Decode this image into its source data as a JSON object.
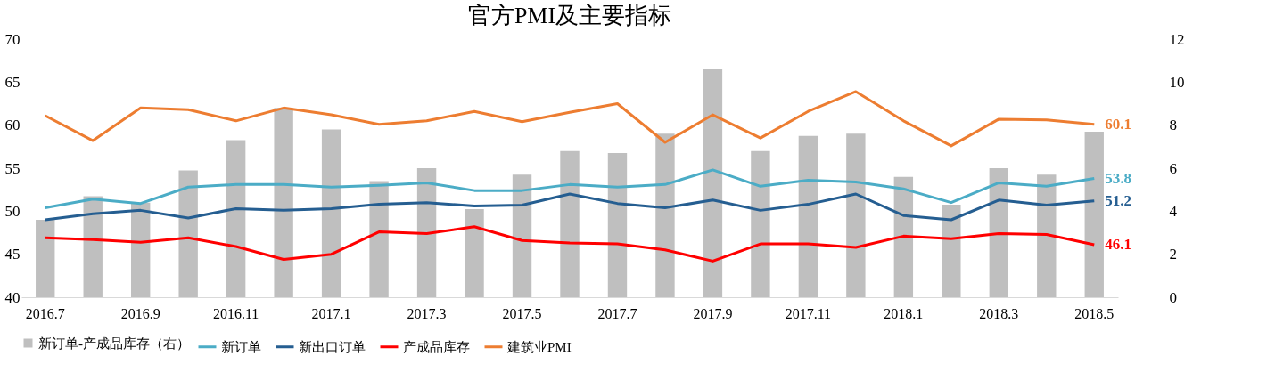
{
  "chart_data": {
    "type": "line",
    "title": "官方PMI及主要指标",
    "categories": [
      "2016.7",
      null,
      "2016.9",
      null,
      "2016.11",
      null,
      "2017.1",
      null,
      "2017.3",
      null,
      "2017.5",
      null,
      "2017.7",
      null,
      "2017.9",
      null,
      "2017.11",
      null,
      "2018.1",
      null,
      "2018.3",
      null,
      "2018.5"
    ],
    "series": [
      {
        "name": "新订单-产成品库存（右）",
        "type": "bar",
        "axis": "y2",
        "color": "#bfbfbf",
        "values": [
          3.6,
          4.7,
          4.4,
          5.9,
          7.3,
          8.8,
          7.8,
          5.4,
          6.0,
          4.1,
          5.7,
          6.8,
          6.7,
          7.6,
          10.6,
          6.8,
          7.5,
          7.6,
          5.6,
          4.3,
          6.0,
          5.7,
          7.7
        ]
      },
      {
        "name": "新订单",
        "color": "#4bacc6",
        "values": [
          50.4,
          51.4,
          50.9,
          52.8,
          53.1,
          53.1,
          52.8,
          53.0,
          53.3,
          52.4,
          52.4,
          53.1,
          52.8,
          53.1,
          54.8,
          52.9,
          53.6,
          53.4,
          52.6,
          51.0,
          53.3,
          52.9,
          53.8
        ],
        "value_labels": [
          null,
          null,
          null,
          null,
          null,
          null,
          null,
          null,
          null,
          null,
          null,
          null,
          null,
          null,
          null,
          null,
          null,
          null,
          null,
          null,
          null,
          null,
          "53.8"
        ]
      },
      {
        "name": "新出口订单",
        "color": "#255e91",
        "values": [
          49.0,
          49.7,
          50.1,
          49.2,
          50.3,
          50.1,
          50.3,
          50.8,
          51.0,
          50.6,
          50.7,
          52.0,
          50.9,
          50.4,
          51.3,
          50.1,
          50.8,
          52.0,
          49.5,
          49.0,
          51.3,
          50.7,
          51.2
        ],
        "value_labels": [
          null,
          null,
          null,
          null,
          null,
          null,
          null,
          null,
          null,
          null,
          null,
          null,
          null,
          null,
          null,
          null,
          null,
          null,
          null,
          null,
          null,
          null,
          "51.2"
        ]
      },
      {
        "name": "产成品库存",
        "color": "#ff0000",
        "values": [
          46.9,
          46.7,
          46.4,
          46.9,
          45.9,
          44.4,
          45.0,
          47.6,
          47.4,
          48.2,
          46.6,
          46.3,
          46.2,
          45.5,
          44.2,
          46.2,
          46.2,
          45.8,
          47.1,
          46.8,
          47.4,
          47.3,
          46.1
        ],
        "value_labels": [
          null,
          null,
          null,
          null,
          null,
          null,
          null,
          null,
          null,
          null,
          null,
          null,
          null,
          null,
          null,
          null,
          null,
          null,
          null,
          null,
          null,
          null,
          "46.1"
        ]
      },
      {
        "name": "建筑业PMI",
        "color": "#ed7d31",
        "values": [
          61.1,
          58.2,
          62.0,
          61.8,
          60.5,
          62.0,
          61.2,
          60.1,
          60.5,
          61.6,
          60.4,
          61.5,
          62.5,
          58.0,
          61.2,
          58.5,
          61.6,
          63.9,
          60.5,
          57.6,
          60.7,
          60.6,
          60.1
        ],
        "value_labels": [
          null,
          null,
          null,
          null,
          null,
          null,
          null,
          null,
          null,
          null,
          null,
          null,
          null,
          null,
          null,
          null,
          null,
          null,
          null,
          null,
          null,
          null,
          "60.1"
        ]
      }
    ],
    "ylim": [
      40,
      70
    ],
    "yticks": [
      40,
      45,
      50,
      55,
      60,
      65,
      70
    ],
    "y2lim": [
      0,
      12
    ],
    "y2ticks": [
      0,
      2,
      4,
      6,
      8,
      10,
      12
    ],
    "grid": false,
    "legend": "bottom",
    "marker": "none",
    "line_style": "solid"
  }
}
